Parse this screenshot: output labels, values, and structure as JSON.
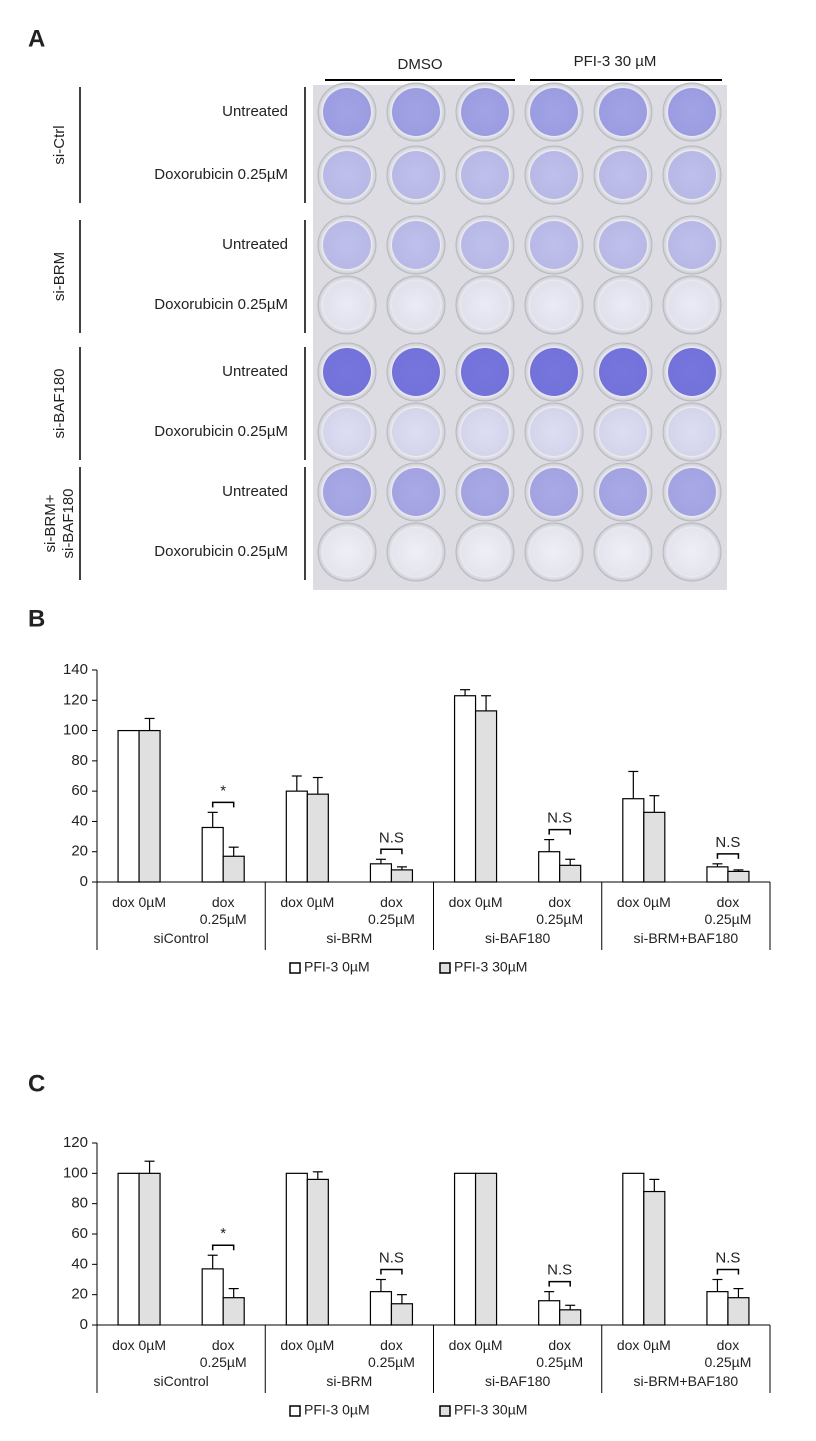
{
  "panel_labels": [
    "A",
    "B",
    "C"
  ],
  "panel_a": {
    "column_headers": [
      "DMSO",
      "PFI-3 30 µM"
    ],
    "row_groups": [
      [
        "si-Ctrl"
      ],
      [
        "si-BRM"
      ],
      [
        "si-BAF180"
      ],
      [
        "si-BRM+",
        "si-BAF180"
      ]
    ],
    "row_labels": [
      "Untreated",
      "Doxorubicin 0.25µM"
    ]
  },
  "chart_data": [
    {
      "type": "bar",
      "categories": [
        "dox 0µM",
        "dox 0.25µM",
        "dox 0µM",
        "dox 0.25µM",
        "dox 0µM",
        "dox 0.25µM",
        "dox 0µM",
        "dox 0.25µM"
      ],
      "groups": [
        "siControl",
        "si-BRM",
        "si-BAF180",
        "si-BRM+BAF180"
      ],
      "annotations": [
        "*",
        "N.S",
        "N.S",
        "N.S"
      ],
      "series": [
        {
          "name": "PFI-3 0µM",
          "color": "#ffffff",
          "values": [
            100,
            36,
            60,
            12,
            123,
            20,
            55,
            10
          ],
          "errors": [
            null,
            10,
            10,
            3,
            4,
            8,
            18,
            2
          ]
        },
        {
          "name": "PFI-3 30µM",
          "color": "#e0e0e0",
          "values": [
            100,
            17,
            58,
            8,
            113,
            11,
            46,
            7
          ],
          "errors": [
            8,
            6,
            11,
            2,
            10,
            4,
            11,
            1
          ]
        }
      ],
      "ylim": [
        0,
        140
      ],
      "yticks": [
        0,
        20,
        40,
        60,
        80,
        100,
        120,
        140
      ]
    },
    {
      "type": "bar",
      "categories": [
        "dox 0µM",
        "dox 0.25µM",
        "dox 0µM",
        "dox 0.25µM",
        "dox 0µM",
        "dox 0.25µM",
        "dox 0µM",
        "dox 0.25µM"
      ],
      "groups": [
        "siControl",
        "si-BRM",
        "si-BAF180",
        "si-BRM+BAF180"
      ],
      "annotations": [
        "*",
        "N.S",
        "N.S",
        "N.S"
      ],
      "series": [
        {
          "name": "PFI-3 0µM",
          "color": "#ffffff",
          "values": [
            100,
            37,
            100,
            22,
            100,
            16,
            100,
            22
          ],
          "errors": [
            null,
            9,
            null,
            8,
            null,
            6,
            null,
            8
          ]
        },
        {
          "name": "PFI-3 30µM",
          "color": "#e0e0e0",
          "values": [
            100,
            18,
            96,
            14,
            100,
            10,
            88,
            18
          ],
          "errors": [
            8,
            6,
            5,
            6,
            null,
            3,
            8,
            6
          ]
        }
      ],
      "ylim": [
        0,
        120
      ],
      "yticks": [
        0,
        20,
        40,
        60,
        80,
        100,
        120
      ]
    }
  ]
}
